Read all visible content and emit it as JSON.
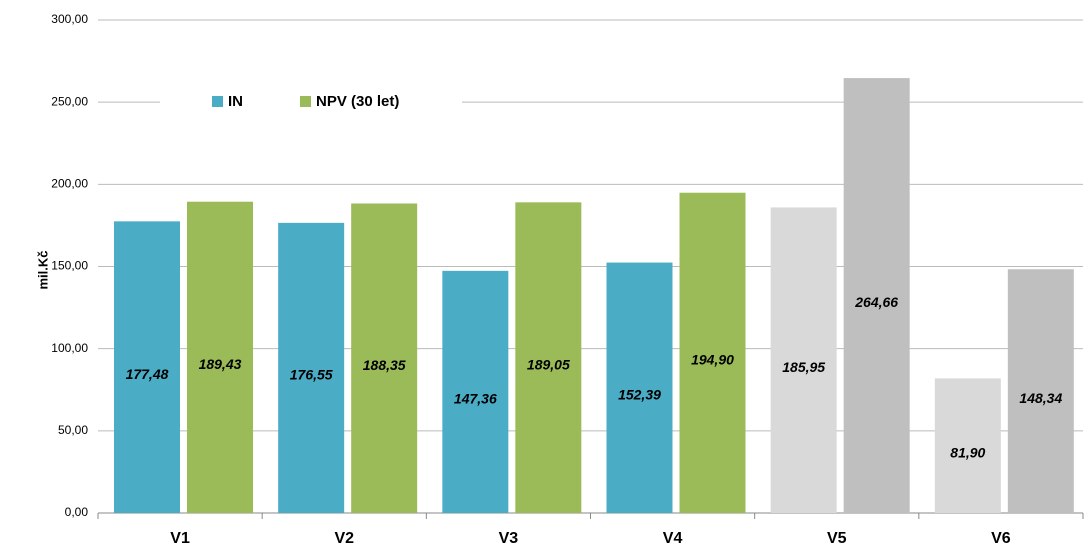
{
  "chart_data": {
    "type": "bar",
    "y_label": "mil.Kč",
    "categories": [
      "V1",
      "V2",
      "V3",
      "V4",
      "V5",
      "V6"
    ],
    "series": [
      {
        "name": "IN",
        "color": "#4bacc6",
        "colors": [
          "#4bacc6",
          "#4bacc6",
          "#4bacc6",
          "#4bacc6",
          "#d9d9d9",
          "#d9d9d9"
        ],
        "values": [
          177.48,
          176.55,
          147.36,
          152.39,
          185.95,
          81.9
        ],
        "value_labels": [
          "177,48",
          "176,55",
          "147,36",
          "152,39",
          "185,95",
          "81,90"
        ]
      },
      {
        "name": "NPV (30 let)",
        "color": "#9bbb59",
        "colors": [
          "#9bbb59",
          "#9bbb59",
          "#9bbb59",
          "#9bbb59",
          "#bfbfbf",
          "#bfbfbf"
        ],
        "values": [
          189.43,
          188.35,
          189.05,
          194.9,
          264.66,
          148.34
        ],
        "value_labels": [
          "189,43",
          "188,35",
          "189,05",
          "194,90",
          "264,66",
          "148,34"
        ]
      }
    ],
    "ylim": [
      0,
      300
    ],
    "yticks": [
      {
        "value": 0,
        "label": "0,00"
      },
      {
        "value": 50,
        "label": "50,00"
      },
      {
        "value": 100,
        "label": "100,00"
      },
      {
        "value": 150,
        "label": "150,00"
      },
      {
        "value": 200,
        "label": "200,00"
      },
      {
        "value": 250,
        "label": "250,00"
      },
      {
        "value": 300,
        "label": "300,00"
      }
    ],
    "grid": true,
    "legend": "top-left"
  }
}
